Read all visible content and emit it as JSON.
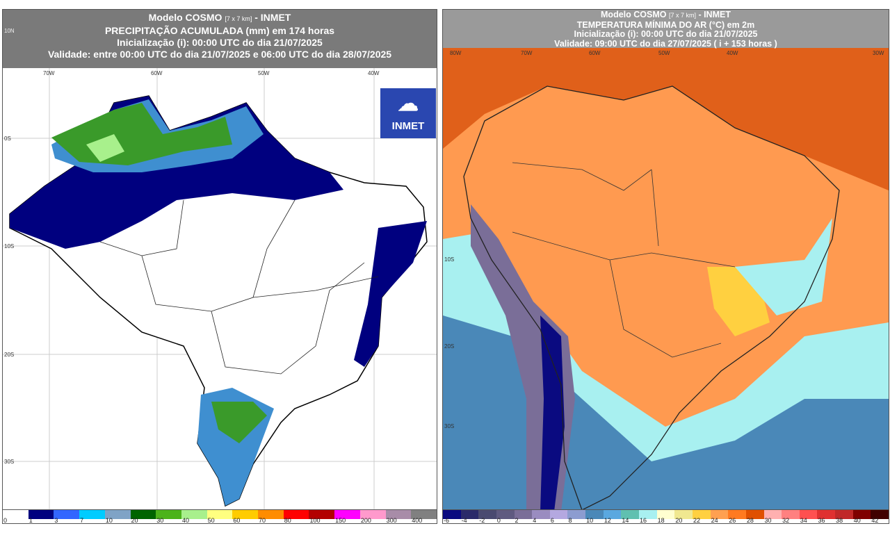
{
  "left_map": {
    "header": {
      "line1": "Modelo COSMO",
      "res": "[7 x 7 km]",
      "inst": "- INMET",
      "line2": "PRECIPITAÇÃO ACUMULADA (mm) em 174 horas",
      "line3": "Inicialização (i): 00:00 UTC do dia 21/07/2025",
      "line4": "Validade: entre 00:00 UTC do dia 21/07/2025 e 06:00 UTC do dia 28/07/2025"
    },
    "lon_ticks": [
      "70W",
      "60W",
      "50W",
      "40W"
    ],
    "lat_ticks": [
      "10N",
      "0S",
      "10S",
      "20S",
      "30S"
    ],
    "logo": "INMET",
    "legend": {
      "labels": [
        "0",
        "1",
        "3",
        "7",
        "10",
        "20",
        "30",
        "40",
        "50",
        "60",
        "70",
        "80",
        "100",
        "150",
        "200",
        "300",
        "400"
      ],
      "colors": [
        "#ffffff",
        "#00007f",
        "#3366ff",
        "#00ccff",
        "#7fa3c6",
        "#006400",
        "#4cb31a",
        "#a8f08c",
        "#ffff80",
        "#ffcc00",
        "#ff8c00",
        "#ff0000",
        "#b30000",
        "#ff00ff",
        "#ff99cc",
        "#a88ca8",
        "#808080"
      ]
    }
  },
  "right_map": {
    "header": {
      "line1": "Modelo COSMO",
      "res": "[7 x 7 km]",
      "inst": "- INMET",
      "line2": "TEMPERATURA MÍNIMA DO AR (°C) em 2m",
      "line3": "Inicialização (i): 00:00 UTC do dia 21/07/2025",
      "line4": "Validade: 09:00 UTC do dia 27/07/2025 ( i + 153 horas )"
    },
    "lon_ticks": [
      "80W",
      "70W",
      "60W",
      "50W",
      "40W",
      "30W"
    ],
    "lat_ticks": [
      "10S",
      "20S",
      "30S"
    ],
    "legend": {
      "labels": [
        "-6",
        "-4",
        "-2",
        "0",
        "2",
        "4",
        "6",
        "8",
        "10",
        "12",
        "14",
        "16",
        "18",
        "20",
        "22",
        "24",
        "26",
        "28",
        "30",
        "32",
        "34",
        "36",
        "38",
        "40",
        "42"
      ],
      "colors": [
        "#0a0a80",
        "#2a2a6a",
        "#4a4a70",
        "#5f5a80",
        "#7a6e98",
        "#9a8cc0",
        "#b4a8e0",
        "#8c9cd0",
        "#4a88b8",
        "#5aa8e0",
        "#60c0b0",
        "#a8f0f0",
        "#ffffd0",
        "#f0e890",
        "#ffd040",
        "#ffa050",
        "#ff7a20",
        "#e05000",
        "#ffb0b0",
        "#ff8080",
        "#ff5050",
        "#e03030",
        "#c02828",
        "#800000",
        "#400000"
      ]
    }
  }
}
